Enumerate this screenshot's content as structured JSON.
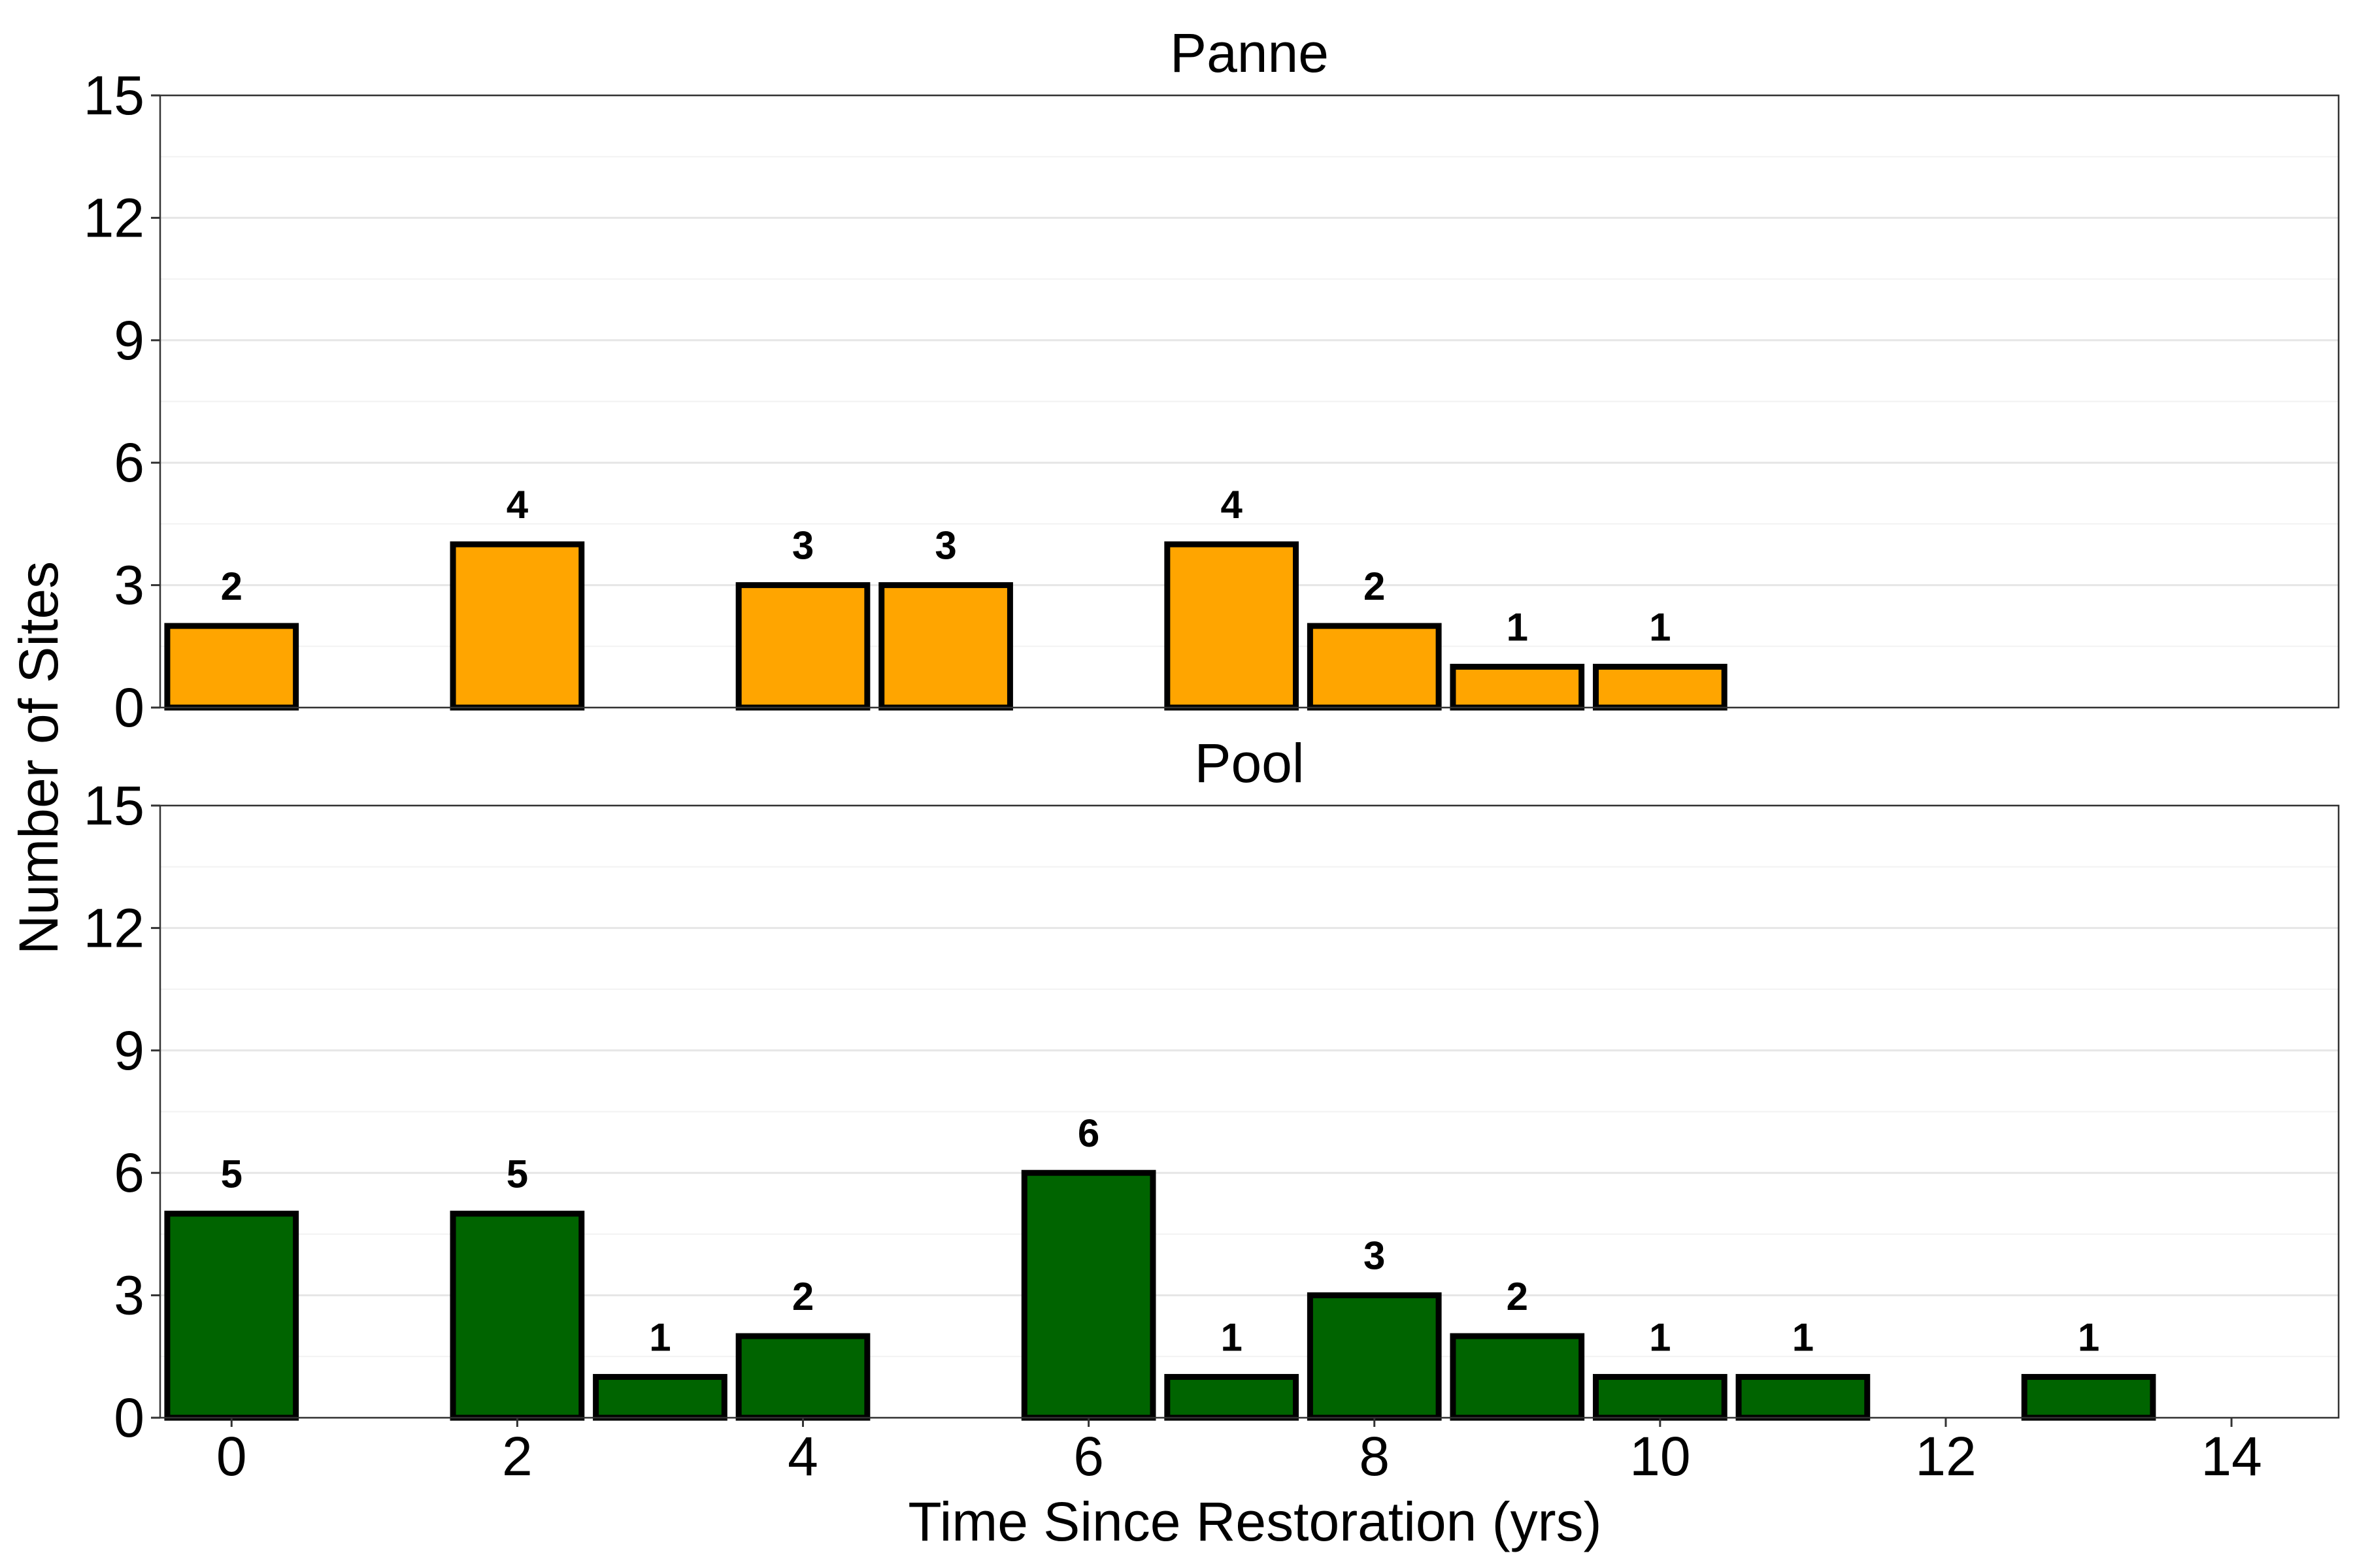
{
  "chart_data": {
    "type": "bar",
    "xlabel": "Time Since Restoration (yrs)",
    "ylabel": "Number of Sites",
    "xlim": [
      -0.5,
      14.75
    ],
    "x_ticks": [
      0,
      2,
      4,
      6,
      8,
      10,
      12,
      14
    ],
    "ylim": [
      0,
      15
    ],
    "y_ticks": [
      0,
      3,
      6,
      9,
      12,
      15
    ],
    "grid": true,
    "panels": [
      {
        "title": "Panne",
        "color": "#FFA500",
        "x": [
          0,
          2,
          4,
          5,
          7,
          8,
          9,
          10
        ],
        "values": [
          2,
          4,
          3,
          3,
          4,
          2,
          1,
          1
        ]
      },
      {
        "title": "Pool",
        "color": "#006400",
        "x": [
          0,
          2,
          3,
          4,
          6,
          7,
          8,
          9,
          10,
          11,
          13
        ],
        "values": [
          5,
          5,
          1,
          2,
          6,
          1,
          3,
          2,
          1,
          1,
          1
        ]
      }
    ]
  }
}
